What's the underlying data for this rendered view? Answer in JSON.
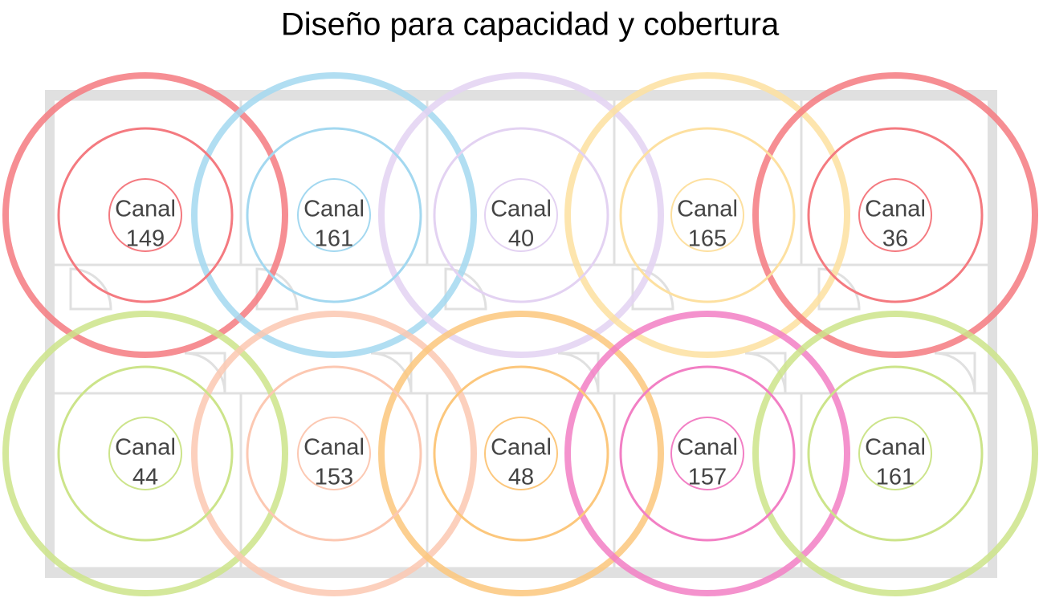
{
  "title": "Diseño para capacidad y cobertura",
  "nodes": [
    {
      "label": "Canal",
      "channel": 149,
      "color": "#f47a80"
    },
    {
      "label": "Canal",
      "channel": 161,
      "color": "#a3d8f0"
    },
    {
      "label": "Canal",
      "channel": 40,
      "color": "#e3d2f2"
    },
    {
      "label": "Canal",
      "channel": 165,
      "color": "#fde0a0"
    },
    {
      "label": "Canal",
      "channel": 36,
      "color": "#f47a80"
    },
    {
      "label": "Canal",
      "channel": 44,
      "color": "#cce48a"
    },
    {
      "label": "Canal",
      "channel": 153,
      "color": "#fcc8b2"
    },
    {
      "label": "Canal",
      "channel": 48,
      "color": "#fcc77c"
    },
    {
      "label": "Canal",
      "channel": 157,
      "color": "#f27fc4"
    },
    {
      "label": "Canal",
      "channel": 161,
      "color": "#cce48a"
    }
  ]
}
